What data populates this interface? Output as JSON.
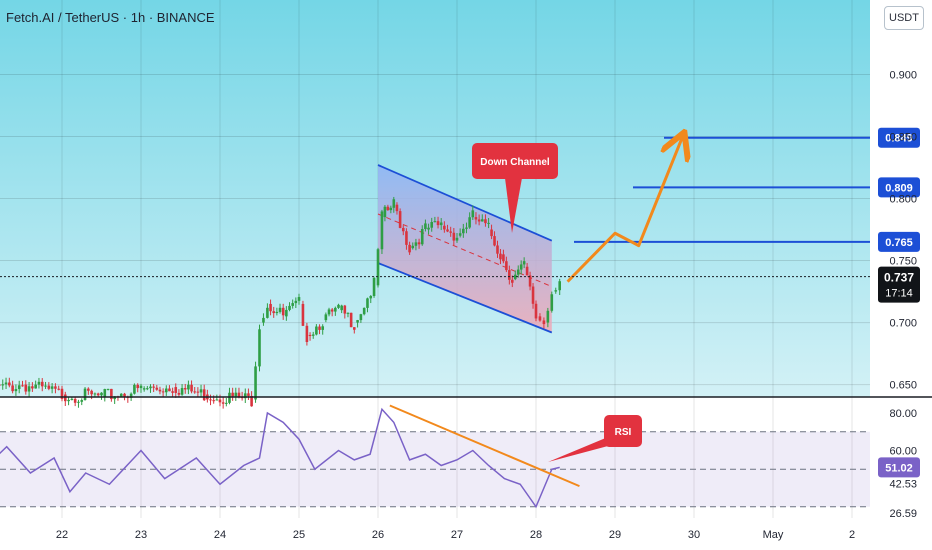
{
  "header": {
    "title": "Fetch.AI / TetherUS · 1h · BINANCE",
    "unit_button": "USDT"
  },
  "colors": {
    "background_top": "#74d6e6",
    "background_bottom": "#d3f1f6",
    "up": "#2e9e45",
    "down": "#d9343e",
    "levels": "#1c4fd6",
    "arrow": "#f2891c",
    "channel_fill": "#8fb4f5",
    "channel_lower_fill": "#f0a8b6",
    "rsi": "#7a62c7",
    "rsi_trend": "#f2891c",
    "callout": "#e2323f"
  },
  "chart_data": {
    "type": "candlestick",
    "title": "Fetch.AI / TetherUS · 1h · BINANCE",
    "interval": "1h",
    "exchange": "BINANCE",
    "quote": "USDT",
    "x_ticks": [
      "22",
      "23",
      "24",
      "25",
      "26",
      "27",
      "28",
      "29",
      "30",
      "May",
      "2"
    ],
    "y_ticks": [
      "0.900",
      "0.850",
      "0.800",
      "0.750",
      "0.700",
      "0.650"
    ],
    "ylim": [
      0.64,
      0.96
    ],
    "close_series_approx": [
      {
        "x": "21",
        "y": 0.645
      },
      {
        "x": "21.5",
        "y": 0.65
      },
      {
        "x": "22",
        "y": 0.642
      },
      {
        "x": "22.5",
        "y": 0.64
      },
      {
        "x": "23",
        "y": 0.646
      },
      {
        "x": "23.4",
        "y": 0.648
      },
      {
        "x": "23.8",
        "y": 0.642
      },
      {
        "x": "24.4",
        "y": 0.638
      },
      {
        "x": "24.5",
        "y": 0.7
      },
      {
        "x": "24.6",
        "y": 0.715
      },
      {
        "x": "24.8",
        "y": 0.705
      },
      {
        "x": "25",
        "y": 0.715
      },
      {
        "x": "25.1",
        "y": 0.69
      },
      {
        "x": "25.3",
        "y": 0.702
      },
      {
        "x": "25.5",
        "y": 0.71
      },
      {
        "x": "25.7",
        "y": 0.7
      },
      {
        "x": "25.95",
        "y": 0.73
      },
      {
        "x": "26.05",
        "y": 0.785
      },
      {
        "x": "26.2",
        "y": 0.795
      },
      {
        "x": "26.4",
        "y": 0.76
      },
      {
        "x": "26.6",
        "y": 0.775
      },
      {
        "x": "26.8",
        "y": 0.778
      },
      {
        "x": "27",
        "y": 0.77
      },
      {
        "x": "27.2",
        "y": 0.785
      },
      {
        "x": "27.4",
        "y": 0.775
      },
      {
        "x": "27.55",
        "y": 0.755
      },
      {
        "x": "27.7",
        "y": 0.735
      },
      {
        "x": "27.85",
        "y": 0.745
      },
      {
        "x": "28",
        "y": 0.705
      },
      {
        "x": "28.1",
        "y": 0.7
      },
      {
        "x": "28.2",
        "y": 0.725
      },
      {
        "x": "28.3",
        "y": 0.737
      }
    ],
    "last_price": {
      "value": "0.737",
      "countdown": "17:14"
    },
    "channel": {
      "label": "Down Channel",
      "upper": [
        [
          "26",
          0.827
        ],
        [
          "28.2",
          0.766
        ]
      ],
      "lower": [
        [
          "26",
          0.748
        ],
        [
          "28.2",
          0.692
        ]
      ]
    },
    "target_levels": [
      {
        "label": "0.765",
        "value": 0.765
      },
      {
        "label": "0.809",
        "value": 0.809
      },
      {
        "label": "0.849",
        "value": 0.849
      }
    ],
    "projection_path": [
      [
        "28.4",
        0.733
      ],
      [
        "29",
        0.772
      ],
      [
        "29.3",
        0.762
      ],
      [
        "29.85",
        0.849
      ]
    ],
    "rsi": {
      "label": "RSI",
      "y_ticks": [
        "80.00",
        "60.00",
        "42.53",
        "26.59"
      ],
      "last_value": "51.02",
      "ylim": [
        24,
        88
      ],
      "bands": [
        70,
        50,
        30
      ],
      "series_approx": [
        [
          21,
          50
        ],
        [
          21.3,
          62
        ],
        [
          21.6,
          48
        ],
        [
          21.9,
          56
        ],
        [
          22.1,
          38
        ],
        [
          22.3,
          48
        ],
        [
          22.6,
          42
        ],
        [
          23,
          60
        ],
        [
          23.3,
          45
        ],
        [
          23.7,
          56
        ],
        [
          24,
          42
        ],
        [
          24.3,
          52
        ],
        [
          24.5,
          56
        ],
        [
          24.6,
          80
        ],
        [
          24.8,
          75
        ],
        [
          25,
          66
        ],
        [
          25.2,
          50
        ],
        [
          25.5,
          60
        ],
        [
          25.7,
          55
        ],
        [
          25.9,
          58
        ],
        [
          26.05,
          82
        ],
        [
          26.2,
          75
        ],
        [
          26.4,
          55
        ],
        [
          26.6,
          58
        ],
        [
          26.8,
          52
        ],
        [
          27,
          55
        ],
        [
          27.2,
          60
        ],
        [
          27.4,
          52
        ],
        [
          27.6,
          45
        ],
        [
          27.8,
          42
        ],
        [
          28,
          30
        ],
        [
          28.1,
          40
        ],
        [
          28.2,
          50
        ],
        [
          28.3,
          51
        ]
      ],
      "trendline": [
        [
          "26.15",
          84
        ],
        [
          "28.55",
          41
        ]
      ]
    }
  }
}
